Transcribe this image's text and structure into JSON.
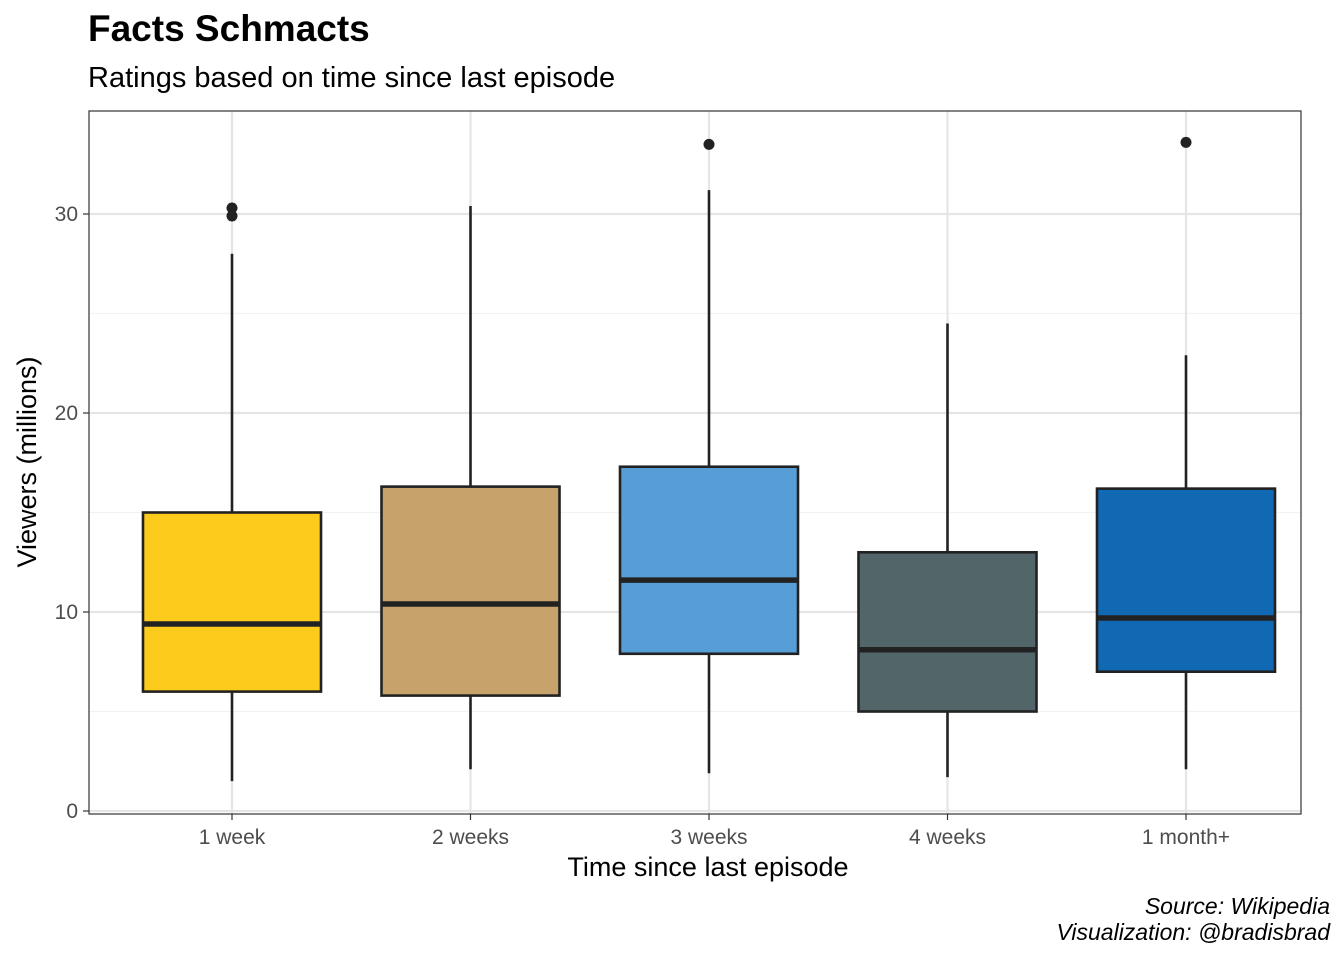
{
  "chart_data": {
    "type": "box",
    "title": "Facts Schmacts",
    "subtitle": "Ratings based on time since last episode",
    "xlabel": "Time since last episode",
    "ylabel": "Viewers (millions)",
    "ylim": [
      0,
      35
    ],
    "yticks": [
      0,
      10,
      20,
      30
    ],
    "grid": true,
    "categories": [
      "1 week",
      "2 weeks",
      "3 weeks",
      "4 weeks",
      "1 month+"
    ],
    "boxes": [
      {
        "category": "1 week",
        "whisker_low": 1.5,
        "q1": 6.0,
        "median": 9.4,
        "q3": 15.0,
        "whisker_high": 28.0,
        "outliers": [
          29.9,
          30.3
        ],
        "color": "#FDCB1C"
      },
      {
        "category": "2 weeks",
        "whisker_low": 2.1,
        "q1": 5.8,
        "median": 10.4,
        "q3": 16.3,
        "whisker_high": 30.4,
        "outliers": [],
        "color": "#C8A26B"
      },
      {
        "category": "3 weeks",
        "whisker_low": 1.9,
        "q1": 7.9,
        "median": 11.6,
        "q3": 17.3,
        "whisker_high": 31.2,
        "outliers": [
          33.5
        ],
        "color": "#589ED6"
      },
      {
        "category": "4 weeks",
        "whisker_low": 1.7,
        "q1": 5.0,
        "median": 8.1,
        "q3": 13.0,
        "whisker_high": 24.5,
        "outliers": [],
        "color": "#52666A"
      },
      {
        "category": "1 month+",
        "whisker_low": 2.1,
        "q1": 7.0,
        "median": 9.7,
        "q3": 16.2,
        "whisker_high": 22.9,
        "outliers": [
          33.6
        ],
        "color": "#1169B4"
      }
    ],
    "caption": [
      "Source: Wikipedia",
      "Visualization: @bradisbrad"
    ]
  }
}
